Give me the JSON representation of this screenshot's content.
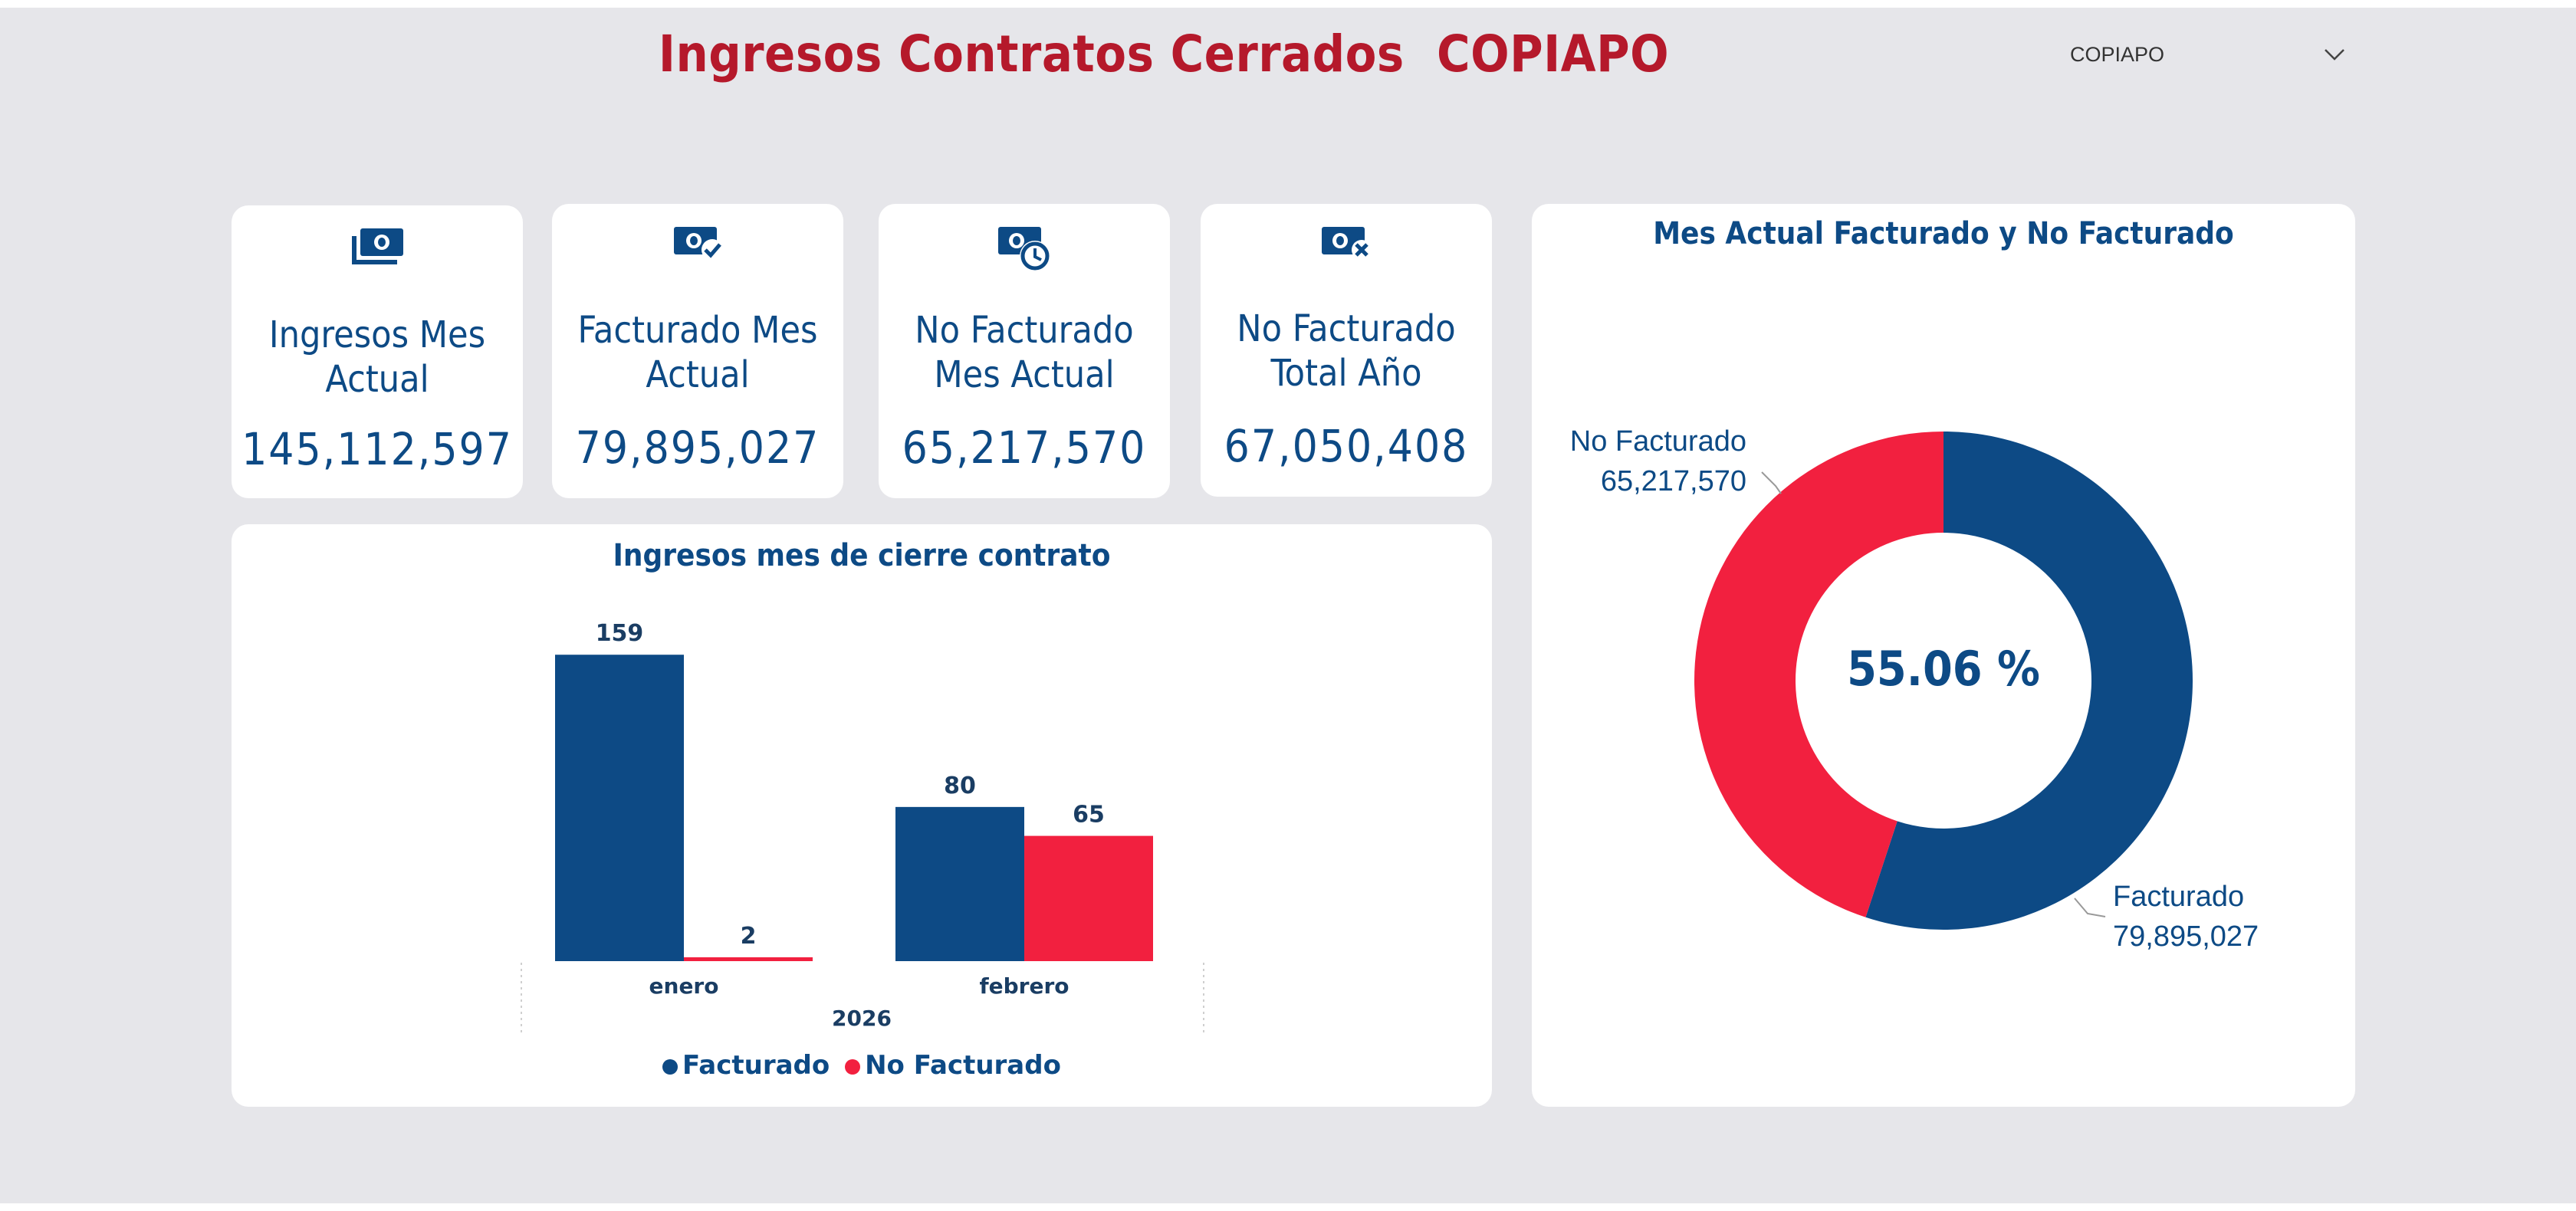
{
  "header": {
    "title": "Ingresos Contratos Cerrados  COPIAPO",
    "slicer_value": "COPIAPO"
  },
  "kpis": [
    {
      "label_line1": "Ingresos Mes",
      "label_line2": "Actual",
      "value": "145,112,597",
      "icon": "money-stack-icon"
    },
    {
      "label_line1": "Facturado Mes",
      "label_line2": "Actual",
      "value": "79,895,027",
      "icon": "money-check-icon"
    },
    {
      "label_line1": "No Facturado",
      "label_line2": "Mes Actual",
      "value": "65,217,570",
      "icon": "money-clock-icon"
    },
    {
      "label_line1": "No Facturado",
      "label_line2": "Total Año",
      "value": "67,050,408",
      "icon": "money-x-icon"
    }
  ],
  "colors": {
    "facturado": "#0d4a85",
    "no_facturado": "#f2203f",
    "title": "#b5192b"
  },
  "chart_data": [
    {
      "type": "bar",
      "title": "Ingresos mes de cierre contrato",
      "categories": [
        "enero",
        "febrero"
      ],
      "group_label": "2026",
      "series": [
        {
          "name": "Facturado",
          "values": [
            159,
            80
          ],
          "labels": [
            "159",
            "80"
          ]
        },
        {
          "name": "No Facturado",
          "values": [
            2,
            65
          ],
          "labels": [
            "2",
            "65"
          ]
        }
      ],
      "ylim": [
        0,
        175
      ],
      "legend": "bottom-center"
    },
    {
      "type": "pie",
      "title": "Mes Actual Facturado y No Facturado",
      "donut": true,
      "center_label": "55.06 %",
      "slices": [
        {
          "name": "Facturado",
          "value": 79895027,
          "label": "79,895,027"
        },
        {
          "name": "No Facturado",
          "value": 65217570,
          "label": "65,217,570"
        }
      ]
    }
  ]
}
